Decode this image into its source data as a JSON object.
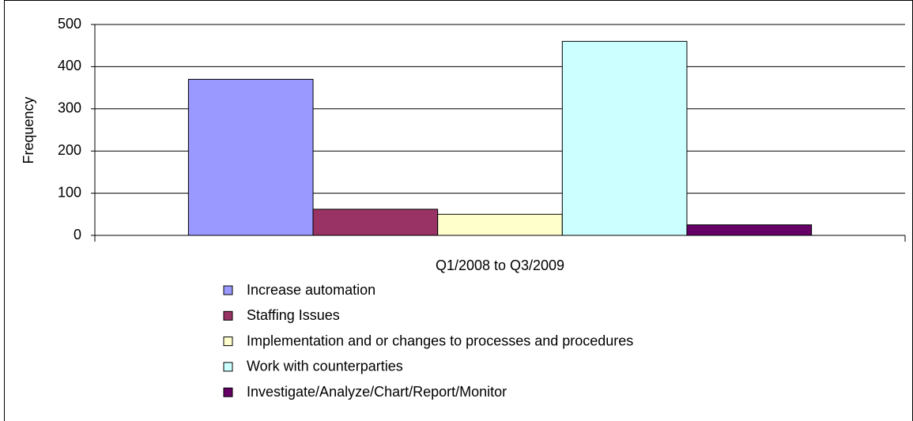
{
  "chart_data": {
    "type": "bar",
    "y_label": "Frequency",
    "categories": [
      "Q1/2008 to Q3/2009"
    ],
    "series": [
      {
        "name": "Increase automation",
        "color": "#9999ff",
        "values": [
          370
        ]
      },
      {
        "name": "Staffing Issues",
        "color": "#993366",
        "values": [
          62
        ]
      },
      {
        "name": "Implementation and or changes to processes and procedures",
        "color": "#ffffcc",
        "values": [
          50
        ]
      },
      {
        "name": "Work with counterparties",
        "color": "#ccffff",
        "values": [
          460
        ]
      },
      {
        "name": "Investigate/Analyze/Chart/Report/Monitor",
        "color": "#660066",
        "values": [
          25
        ]
      }
    ],
    "ylim": [
      0,
      500
    ],
    "yticks": [
      0,
      100,
      200,
      300,
      400,
      500
    ],
    "grid": true
  }
}
